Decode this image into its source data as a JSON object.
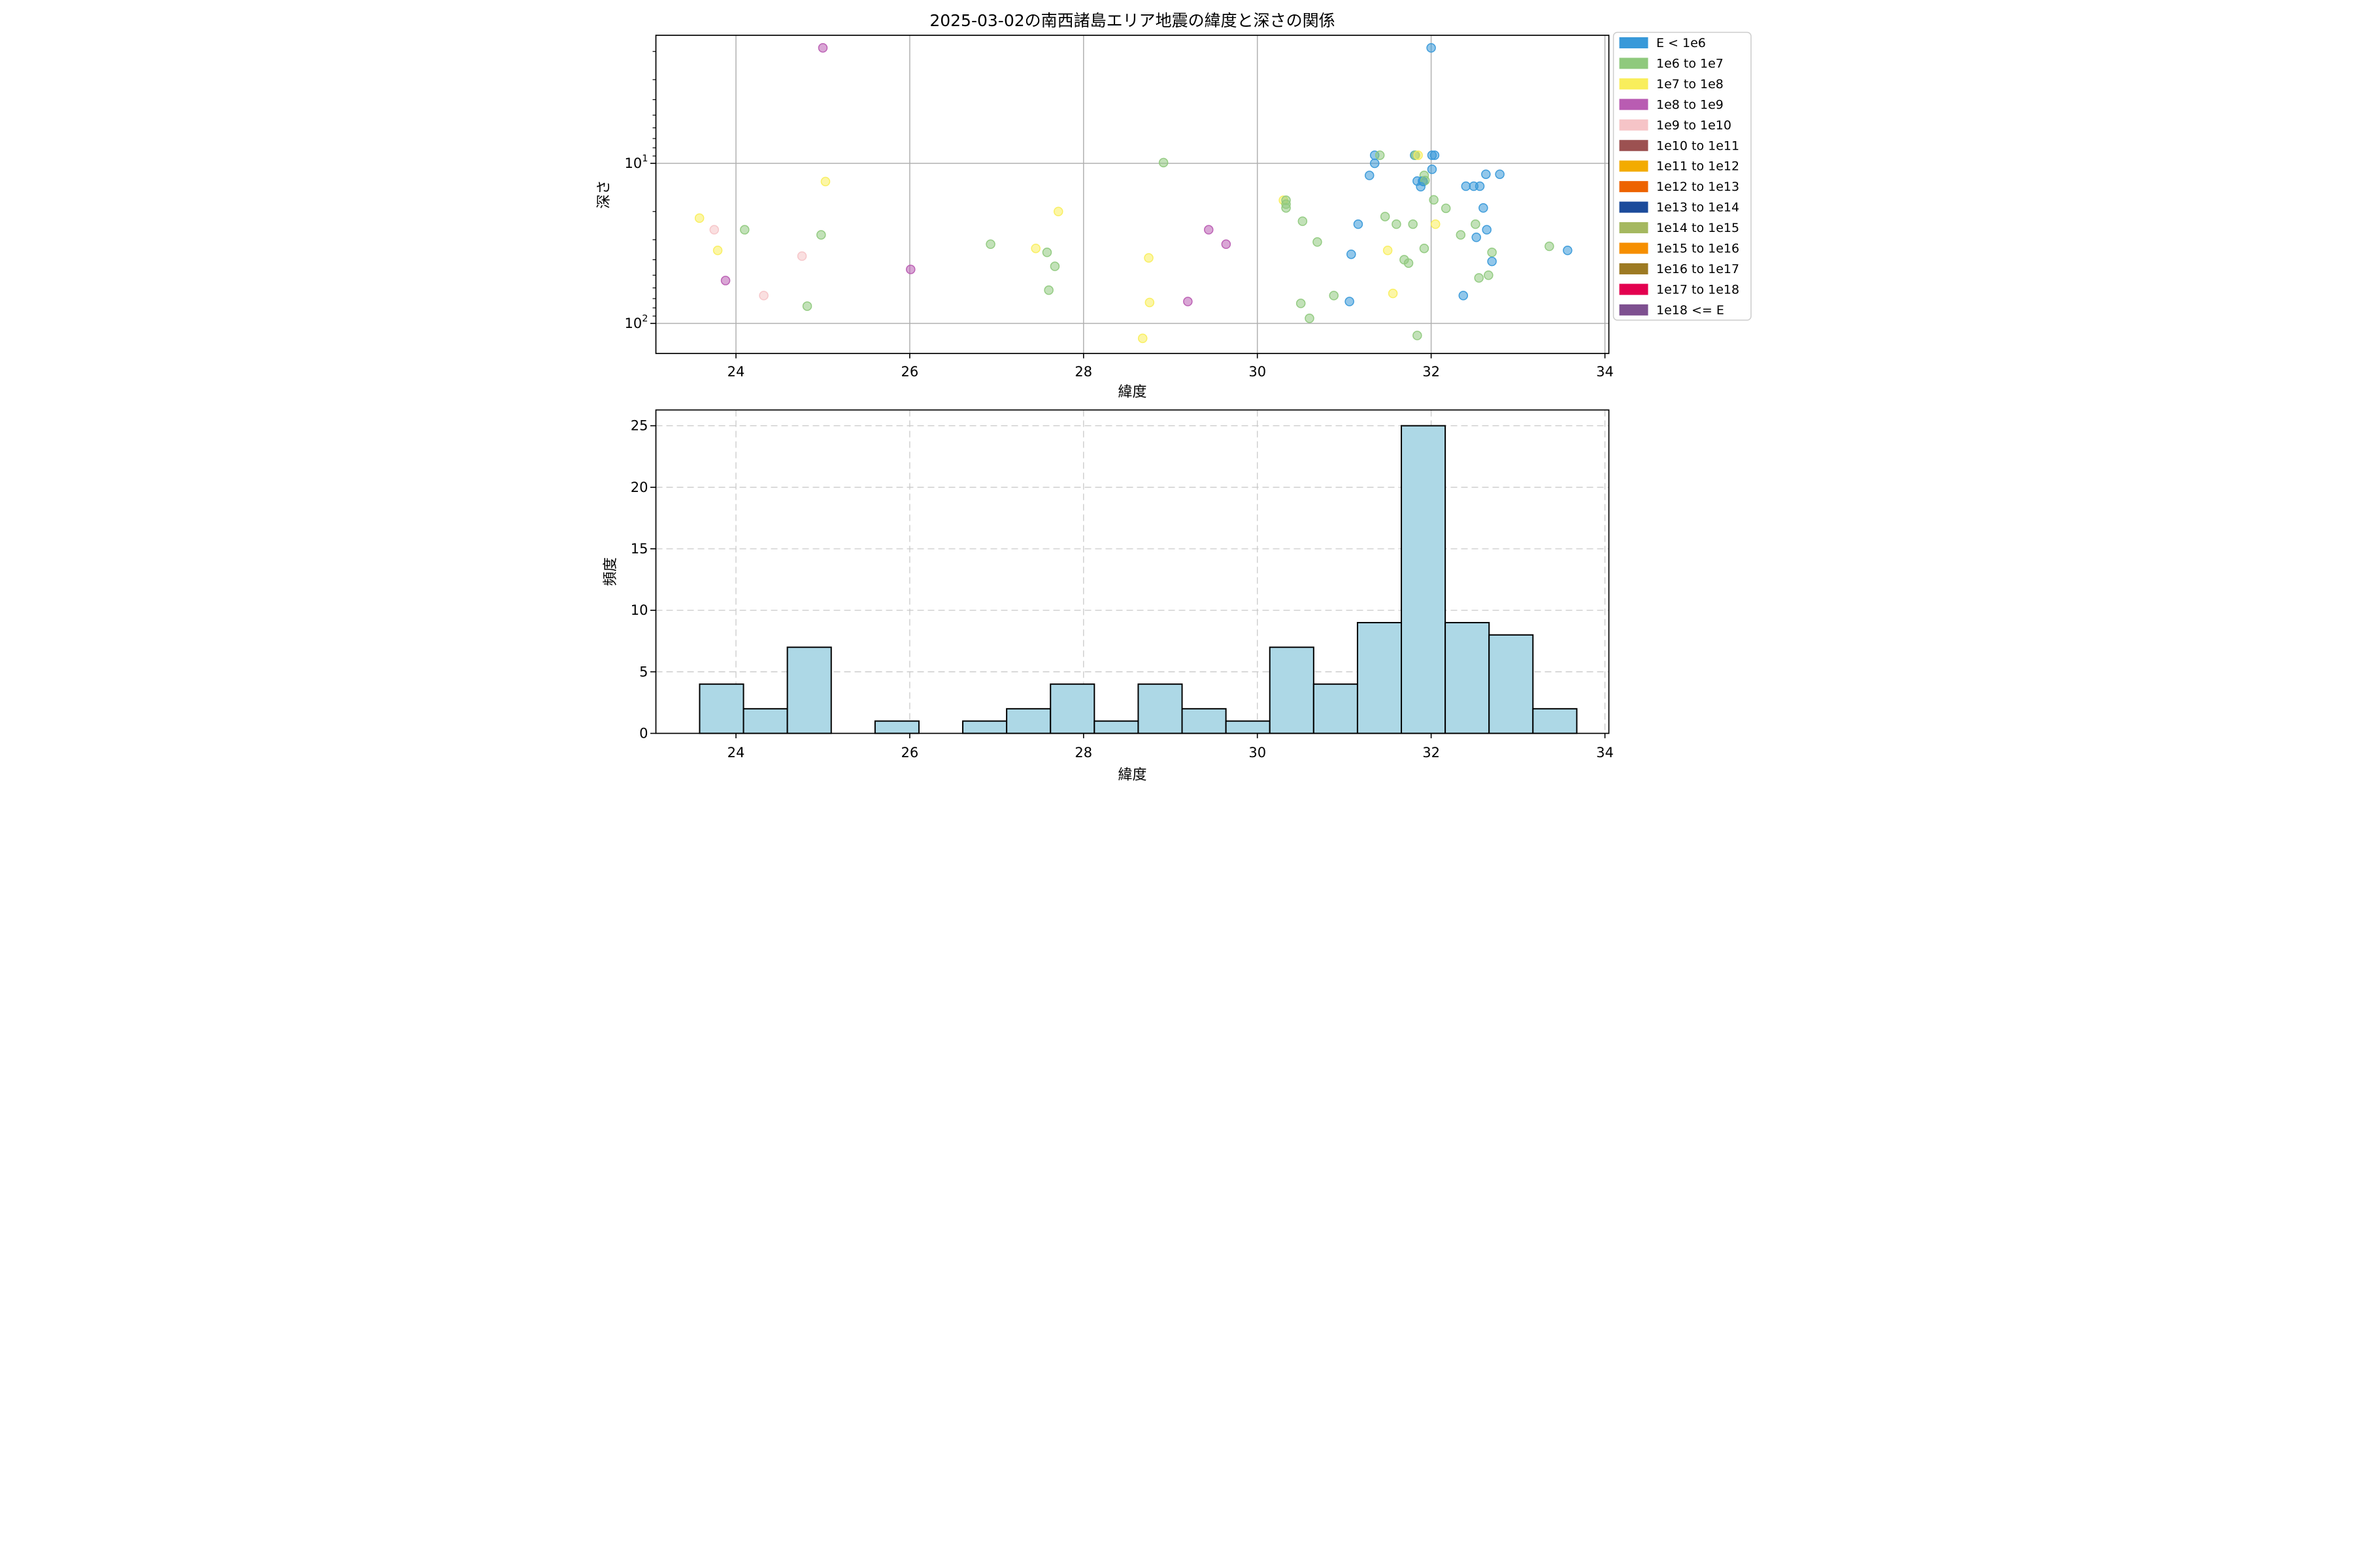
{
  "figure": {
    "title": "2025-03-02の南西諸島エリア地震の緯度と深さの関係",
    "background": "#ffffff"
  },
  "chart_data": [
    {
      "type": "scatter",
      "title": "2025-03-02の南西諸島エリア地震の緯度と深さの関係",
      "xlabel": "緯度",
      "ylabel": "深さ",
      "xlim": [
        23.08,
        34.05
      ],
      "ylim_depth_km": [
        1.58,
        155
      ],
      "y_scale": "log-inverted",
      "x_ticks": [
        24,
        26,
        28,
        30,
        32,
        34
      ],
      "y_major_ticks": [
        {
          "base": "10",
          "exp": "1"
        },
        {
          "base": "10",
          "exp": "2"
        }
      ],
      "grid": "solid-major",
      "legend_position": "outside-right",
      "series_key": {
        "b": "E < 1e6",
        "g": "1e6 to 1e7",
        "y": "1e7 to 1e8",
        "p": "1e8 to 1e9",
        "k": "1e9 to 1e10"
      },
      "points": [
        [
          25.0,
          1.9,
          "p"
        ],
        [
          32.0,
          1.9,
          "b"
        ],
        [
          31.35,
          8.9,
          "b"
        ],
        [
          31.41,
          8.9,
          "g"
        ],
        [
          31.81,
          8.9,
          "b"
        ],
        [
          31.82,
          8.9,
          "g"
        ],
        [
          31.85,
          8.9,
          "y"
        ],
        [
          32.01,
          8.9,
          "b"
        ],
        [
          32.04,
          8.9,
          "b"
        ],
        [
          28.92,
          9.9,
          "g"
        ],
        [
          31.35,
          10.0,
          "b"
        ],
        [
          32.01,
          10.9,
          "b"
        ],
        [
          31.29,
          11.9,
          "b"
        ],
        [
          31.92,
          11.9,
          "g"
        ],
        [
          32.63,
          11.7,
          "b"
        ],
        [
          32.79,
          11.7,
          "b"
        ],
        [
          31.84,
          12.9,
          "b"
        ],
        [
          31.9,
          12.9,
          "b"
        ],
        [
          31.91,
          13.0,
          "b"
        ],
        [
          31.93,
          12.8,
          "g"
        ],
        [
          31.88,
          14.0,
          "b"
        ],
        [
          25.03,
          13.0,
          "y"
        ],
        [
          32.4,
          13.9,
          "b"
        ],
        [
          32.49,
          13.9,
          "b"
        ],
        [
          32.56,
          13.9,
          "b"
        ],
        [
          32.03,
          16.9,
          "g"
        ],
        [
          30.3,
          17.0,
          "y"
        ],
        [
          30.33,
          17.0,
          "g"
        ],
        [
          30.33,
          18.0,
          "g"
        ],
        [
          30.33,
          19.0,
          "g"
        ],
        [
          32.17,
          19.1,
          "g"
        ],
        [
          32.6,
          19.0,
          "b"
        ],
        [
          27.71,
          20.0,
          "y"
        ],
        [
          23.58,
          22.0,
          "y"
        ],
        [
          31.47,
          21.5,
          "g"
        ],
        [
          30.52,
          23.0,
          "g"
        ],
        [
          31.16,
          24.0,
          "b"
        ],
        [
          31.6,
          24.0,
          "g"
        ],
        [
          31.79,
          24.0,
          "g"
        ],
        [
          32.05,
          24.0,
          "y"
        ],
        [
          32.51,
          24.0,
          "g"
        ],
        [
          23.75,
          26.0,
          "k"
        ],
        [
          24.1,
          26.0,
          "g"
        ],
        [
          29.44,
          26.0,
          "p"
        ],
        [
          32.64,
          26.0,
          "b"
        ],
        [
          24.98,
          28.0,
          "g"
        ],
        [
          32.34,
          28.0,
          "g"
        ],
        [
          32.52,
          29.0,
          "b"
        ],
        [
          30.69,
          31.0,
          "g"
        ],
        [
          26.93,
          32.0,
          "g"
        ],
        [
          29.64,
          32.0,
          "p"
        ],
        [
          33.36,
          33.0,
          "g"
        ],
        [
          27.45,
          34.0,
          "y"
        ],
        [
          31.92,
          34.0,
          "g"
        ],
        [
          23.79,
          35.0,
          "y"
        ],
        [
          31.5,
          35.0,
          "y"
        ],
        [
          33.57,
          35.0,
          "b"
        ],
        [
          27.58,
          36.0,
          "g"
        ],
        [
          32.7,
          36.0,
          "g"
        ],
        [
          31.08,
          37.0,
          "b"
        ],
        [
          24.76,
          38.0,
          "k"
        ],
        [
          28.75,
          39.0,
          "y"
        ],
        [
          31.69,
          40.0,
          "g"
        ],
        [
          32.7,
          41.0,
          "b"
        ],
        [
          31.74,
          42.0,
          "g"
        ],
        [
          27.67,
          44.0,
          "g"
        ],
        [
          26.01,
          46.0,
          "p"
        ],
        [
          32.66,
          50.0,
          "g"
        ],
        [
          32.55,
          52.0,
          "g"
        ],
        [
          23.88,
          54.0,
          "p"
        ],
        [
          27.6,
          62.0,
          "g"
        ],
        [
          31.56,
          65.0,
          "y"
        ],
        [
          30.88,
          67.0,
          "g"
        ],
        [
          32.37,
          67.0,
          "b"
        ],
        [
          24.32,
          67.0,
          "k"
        ],
        [
          31.06,
          73.0,
          "b"
        ],
        [
          29.2,
          73.0,
          "p"
        ],
        [
          28.76,
          74.0,
          "y"
        ],
        [
          30.5,
          75.0,
          "g"
        ],
        [
          24.82,
          78.0,
          "g"
        ],
        [
          30.6,
          93.0,
          "g"
        ],
        [
          31.84,
          119.0,
          "g"
        ],
        [
          28.68,
          124.0,
          "y"
        ]
      ]
    },
    {
      "type": "bar",
      "subtype": "histogram",
      "xlabel": "緯度",
      "ylabel": "頻度",
      "bin_start": 23.582,
      "bin_width": 0.5047,
      "counts": [
        4,
        2,
        7,
        0,
        1,
        0,
        1,
        2,
        4,
        1,
        4,
        2,
        1,
        7,
        4,
        9,
        25,
        9,
        8,
        2
      ],
      "x_ticks": [
        24,
        26,
        28,
        30,
        32,
        34
      ],
      "y_ticks": [
        0,
        5,
        10,
        15,
        20,
        25
      ],
      "ylim": [
        0,
        26.3
      ],
      "grid": "dashed-both",
      "bar_fill": "#add8e6",
      "bar_edge": "#000000"
    }
  ],
  "legend": {
    "entries": [
      {
        "label": "E < 1e6",
        "color": "#3899d9",
        "key": "b"
      },
      {
        "label": "1e6 to 1e7",
        "color": "#8fc97d",
        "key": "g"
      },
      {
        "label": "1e7 to 1e8",
        "color": "#f9ee5c",
        "key": "y"
      },
      {
        "label": "1e8 to 1e9",
        "color": "#b95cb2",
        "key": "p"
      },
      {
        "label": "1e9 to 1e10",
        "color": "#f6c4c7",
        "key": "k"
      },
      {
        "label": "1e10 to 1e11",
        "color": "#9c5151",
        "key": "br"
      },
      {
        "label": "1e11 to 1e12",
        "color": "#f3ab00",
        "key": "am"
      },
      {
        "label": "1e12 to 1e13",
        "color": "#ed6300",
        "key": "or"
      },
      {
        "label": "1e13 to 1e14",
        "color": "#1c4b9b",
        "key": "nv"
      },
      {
        "label": "1e14 to 1e15",
        "color": "#a5b860",
        "key": "ol"
      },
      {
        "label": "1e15 to 1e16",
        "color": "#f68f00",
        "key": "o2"
      },
      {
        "label": "1e16 to 1e17",
        "color": "#9d7a23",
        "key": "dg"
      },
      {
        "label": "1e17 to 1e18",
        "color": "#e3004f",
        "key": "cr"
      },
      {
        "label": "1e18 <= E",
        "color": "#7e5090",
        "key": "dp"
      }
    ]
  },
  "style_colors": {
    "grid_solid": "#b0b0b0",
    "grid_dashed": "#c9c9c9",
    "spine": "#000000",
    "legend_border": "#cccccc"
  }
}
